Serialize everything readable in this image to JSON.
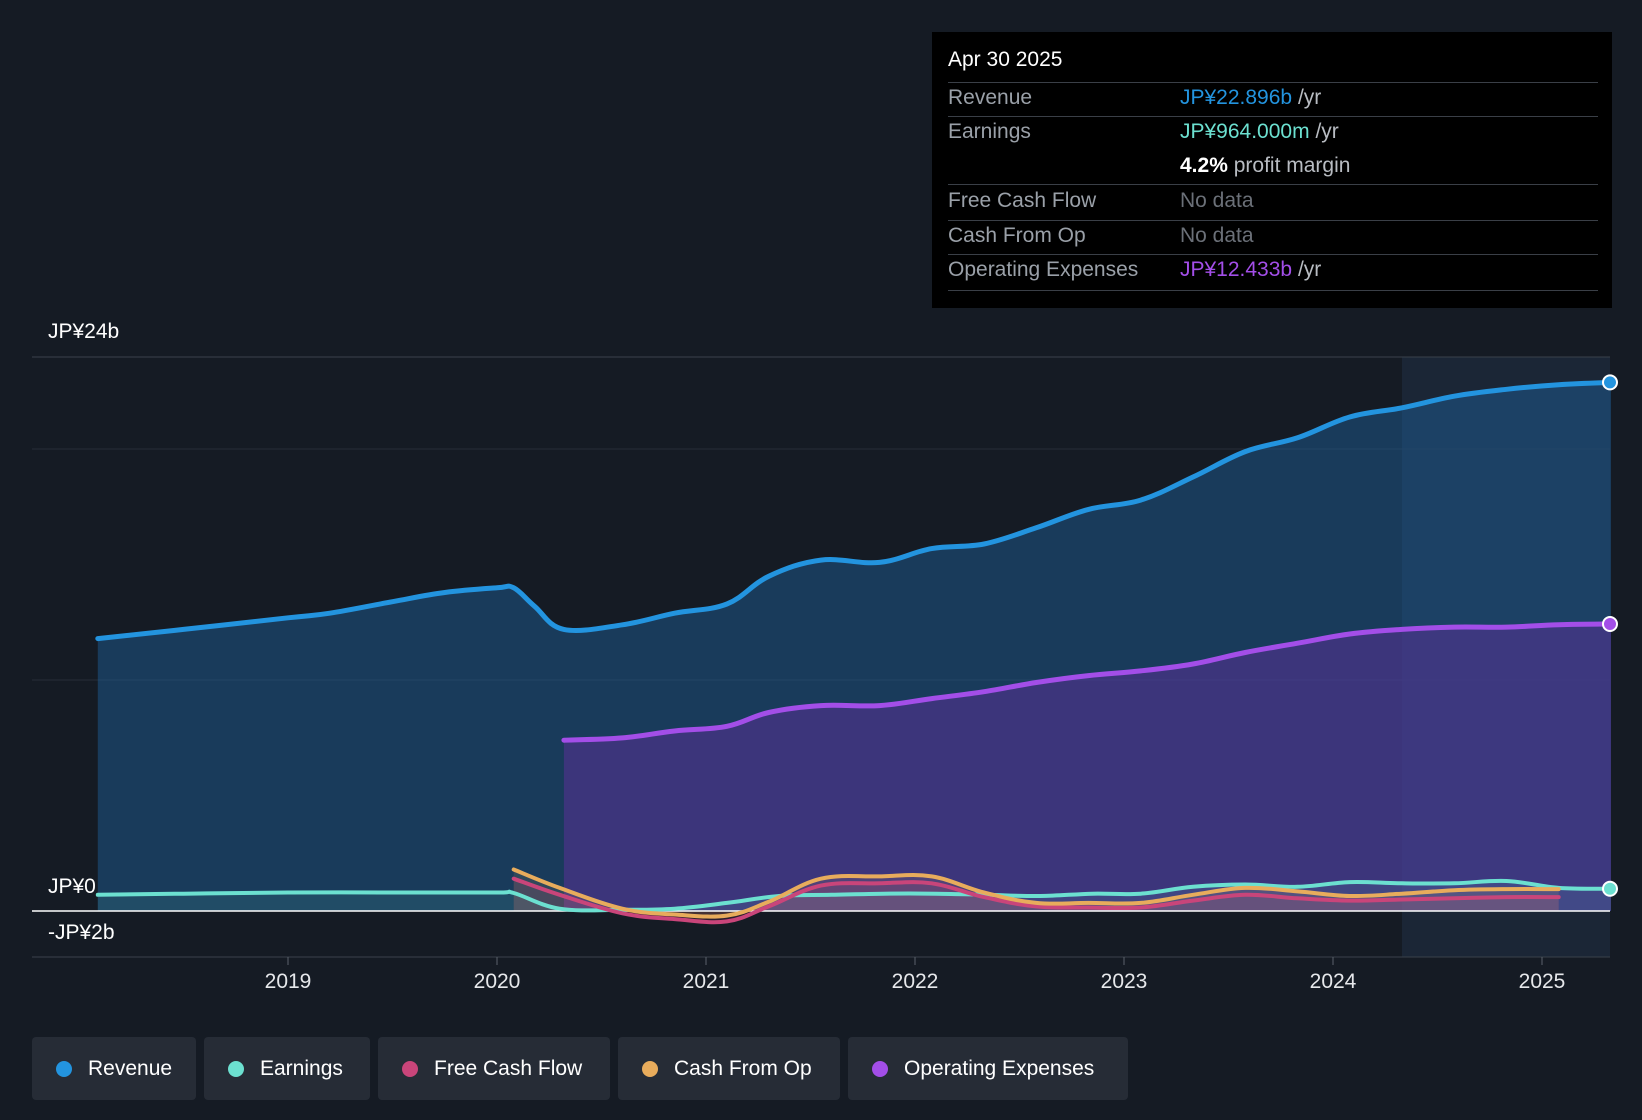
{
  "tooltip": {
    "date": "Apr 30 2025",
    "revenue_label": "Revenue",
    "revenue_value": "JP¥22.896b",
    "earnings_label": "Earnings",
    "earnings_value": "JP¥964.000m",
    "profit_margin_value": "4.2%",
    "profit_margin_label": "profit margin",
    "fcf_label": "Free Cash Flow",
    "fcf_value": "No data",
    "cfo_label": "Cash From Op",
    "cfo_value": "No data",
    "opex_label": "Operating Expenses",
    "opex_value": "JP¥12.433b",
    "unit": "/yr"
  },
  "legend": [
    {
      "label": "Revenue",
      "color": "#2394df"
    },
    {
      "label": "Earnings",
      "color": "#6ce0d0"
    },
    {
      "label": "Free Cash Flow",
      "color": "#c9457a"
    },
    {
      "label": "Cash From Op",
      "color": "#e8ac5c"
    },
    {
      "label": "Operating Expenses",
      "color": "#a34ee8"
    }
  ],
  "chart_data": {
    "type": "area",
    "title": "",
    "y_tick_labels": [
      "JP¥24b",
      "JP¥0",
      "-JP¥2b"
    ],
    "ylim": [
      -2,
      24
    ],
    "xlim": [
      2017.8,
      2025.33
    ],
    "x_ticks": [
      2019,
      2020,
      2021,
      2022,
      2023,
      2024,
      2025
    ],
    "x_tick_labels": [
      "2019",
      "2020",
      "2021",
      "2022",
      "2023",
      "2024",
      "2025"
    ],
    "series": [
      {
        "name": "Revenue",
        "color": "#2394df",
        "x": [
          2018.09,
          2018.5,
          2019.0,
          2019.2,
          2019.5,
          2019.75,
          2020.0,
          2020.08,
          2020.18,
          2020.32,
          2020.6,
          2020.85,
          2021.1,
          2021.3,
          2021.55,
          2021.83,
          2022.08,
          2022.33,
          2022.58,
          2022.83,
          2023.08,
          2023.33,
          2023.58,
          2023.83,
          2024.08,
          2024.33,
          2024.58,
          2024.83,
          2025.08,
          2025.33
        ],
        "values": [
          11.8,
          12.2,
          12.7,
          12.9,
          13.4,
          13.8,
          14.0,
          14.0,
          13.2,
          12.2,
          12.4,
          12.9,
          13.3,
          14.5,
          15.2,
          15.1,
          15.7,
          15.9,
          16.6,
          17.4,
          17.8,
          18.8,
          19.9,
          20.5,
          21.4,
          21.8,
          22.3,
          22.6,
          22.8,
          22.9
        ]
      },
      {
        "name": "Earnings",
        "color": "#6ce0d0",
        "x": [
          2018.09,
          2018.5,
          2019.0,
          2019.5,
          2020.0,
          2020.08,
          2020.3,
          2020.6,
          2020.85,
          2021.1,
          2021.35,
          2021.6,
          2021.85,
          2022.1,
          2022.35,
          2022.6,
          2022.85,
          2023.08,
          2023.33,
          2023.58,
          2023.83,
          2024.08,
          2024.33,
          2024.58,
          2024.83,
          2025.08,
          2025.33
        ],
        "values": [
          0.7,
          0.75,
          0.8,
          0.8,
          0.8,
          0.78,
          0.1,
          0.05,
          0.1,
          0.35,
          0.65,
          0.7,
          0.75,
          0.75,
          0.7,
          0.65,
          0.75,
          0.75,
          1.05,
          1.15,
          1.05,
          1.25,
          1.2,
          1.2,
          1.3,
          1.0,
          0.964
        ]
      },
      {
        "name": "Free Cash Flow",
        "color": "#c9457a",
        "x": [
          2020.08,
          2020.3,
          2020.6,
          2020.85,
          2021.1,
          2021.3,
          2021.55,
          2021.83,
          2022.08,
          2022.33,
          2022.58,
          2022.83,
          2023.08,
          2023.33,
          2023.58,
          2023.83,
          2024.08,
          2024.33,
          2024.58,
          2024.83,
          2025.08
        ],
        "values": [
          1.4,
          0.7,
          -0.1,
          -0.35,
          -0.45,
          0.2,
          1.1,
          1.2,
          1.2,
          0.6,
          0.2,
          0.15,
          0.15,
          0.45,
          0.7,
          0.55,
          0.45,
          0.5,
          0.55,
          0.6,
          0.6
        ]
      },
      {
        "name": "Cash From Op",
        "color": "#e8ac5c",
        "x": [
          2020.08,
          2020.3,
          2020.6,
          2020.85,
          2021.1,
          2021.3,
          2021.55,
          2021.83,
          2022.08,
          2022.33,
          2022.58,
          2022.83,
          2023.08,
          2023.33,
          2023.58,
          2023.83,
          2024.08,
          2024.33,
          2024.58,
          2024.83,
          2025.08
        ],
        "values": [
          1.8,
          1.0,
          0.1,
          -0.15,
          -0.2,
          0.4,
          1.4,
          1.5,
          1.5,
          0.8,
          0.35,
          0.35,
          0.35,
          0.7,
          1.0,
          0.85,
          0.65,
          0.75,
          0.9,
          0.95,
          0.95
        ]
      },
      {
        "name": "Operating Expenses",
        "color": "#a34ee8",
        "x": [
          2020.32,
          2020.6,
          2020.85,
          2021.1,
          2021.3,
          2021.55,
          2021.83,
          2022.08,
          2022.33,
          2022.58,
          2022.83,
          2023.08,
          2023.33,
          2023.58,
          2023.83,
          2024.08,
          2024.33,
          2024.58,
          2024.83,
          2025.08,
          2025.33
        ],
        "values": [
          7.4,
          7.5,
          7.8,
          8.0,
          8.6,
          8.9,
          8.9,
          9.2,
          9.5,
          9.9,
          10.2,
          10.4,
          10.7,
          11.2,
          11.6,
          12.0,
          12.2,
          12.3,
          12.3,
          12.4,
          12.433
        ]
      }
    ]
  }
}
